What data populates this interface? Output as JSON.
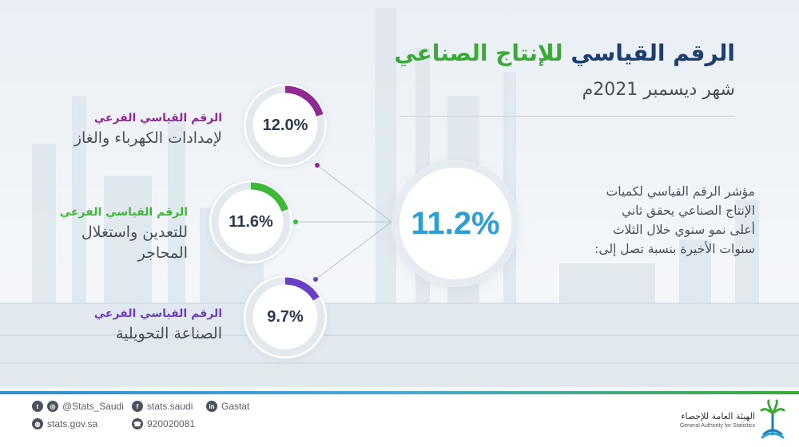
{
  "header": {
    "title_part1": "الرقم القياسي",
    "title_part2": "للإنتاج الصناعي",
    "subtitle": "شهر ديسمبر 2021م"
  },
  "main_value": "11.2%",
  "description_lines": [
    "مؤشر الرقم القياسي لكميات",
    "الإنتاج الصناعي يحقق ثاني",
    "أعلى نمو سنوي خلال الثلاث",
    "سنوات الأخيرة بنسبة تصل إلى:"
  ],
  "sub_indices": [
    {
      "value_label": "12.0%",
      "value": 12.0,
      "category": "الرقم القياسي الفرعي",
      "name_lines": [
        "لإمدادات الكهرباء والغاز"
      ],
      "color": "#8e2a91"
    },
    {
      "value_label": "11.6%",
      "value": 11.6,
      "category": "الرقم القياسي الفرعي",
      "name_lines": [
        "للتعدين واستغلال",
        "المحاجر"
      ],
      "color": "#3fb93a"
    },
    {
      "value_label": "9.7%",
      "value": 9.7,
      "category": "الرقم القياسي الفرعي",
      "name_lines": [
        "الصناعة التحويلية"
      ],
      "color": "#6b3fc4"
    }
  ],
  "footer": {
    "twitter": "@Stats_Saudi",
    "facebook": "stats.saudi",
    "linkedin": "Gastat",
    "website": "stats.gov.sa",
    "phone": "920020081",
    "org_ar": "الهيئة العامة للإحصاء",
    "org_en": "General Authority for Statistics"
  },
  "colors": {
    "navy": "#1e3f6e",
    "green": "#3aaa35",
    "blue": "#2b9fd6"
  }
}
